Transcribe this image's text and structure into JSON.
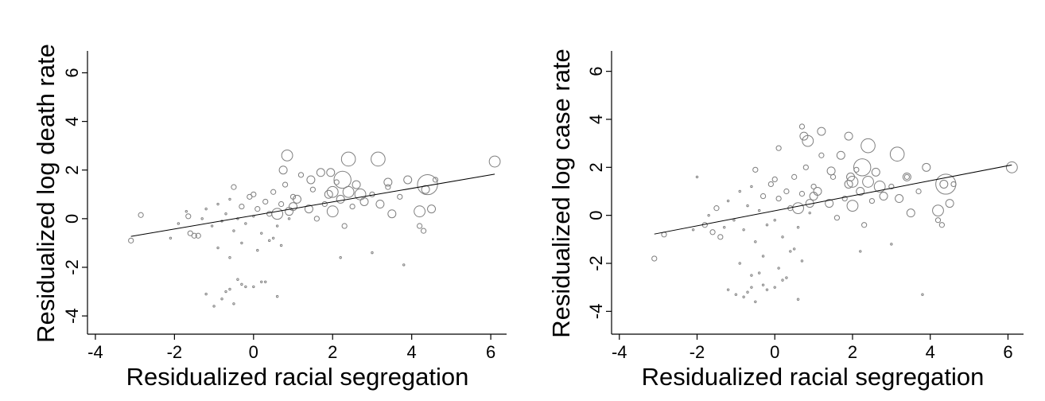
{
  "colors": {
    "marker": "#7f7f7f",
    "fit_line": "#000000",
    "axes": "#000000",
    "background": "#ffffff"
  },
  "chart_data": [
    {
      "type": "scatter",
      "title": "",
      "xlabel": "Residualized racial segregation",
      "ylabel": "Residualized log death rate",
      "xlim": [
        -4.2,
        6.4
      ],
      "ylim": [
        -4.75,
        6.9
      ],
      "x_ticks": [
        -4,
        -2,
        0,
        2,
        4,
        6
      ],
      "y_ticks": [
        -4,
        -2,
        0,
        2,
        4,
        6
      ],
      "x_tick_labels": [
        "-4",
        "-2",
        "0",
        "2",
        "4",
        "6"
      ],
      "y_tick_labels": [
        "-4",
        "-2",
        "0",
        "2",
        "4",
        "6"
      ],
      "grid": false,
      "legend": "none",
      "marker": "hollow circles weighted by county population",
      "fit_line": {
        "x": [
          -3.1,
          6.1
        ],
        "y": [
          -0.73,
          1.83
        ]
      },
      "series": [
        {
          "x": [
            -3.1,
            -2.85,
            -2.1,
            -1.9,
            -1.65,
            -1.5,
            -1.7,
            -1.3,
            -1.2,
            -1.05,
            -0.9,
            -0.8,
            -0.7,
            -0.6,
            -0.5,
            -0.4,
            -0.3,
            -0.2,
            -0.1,
            0.0,
            0.1,
            0.2,
            0.3,
            0.4,
            0.5,
            0.6,
            0.7,
            0.8,
            0.9,
            1.0,
            -0.9,
            -0.6,
            -0.3,
            0.1,
            0.4,
            0.7,
            -0.5,
            0.0,
            0.5,
            1.0,
            1.2,
            1.4,
            1.5,
            1.6,
            1.7,
            1.8,
            1.9,
            2.0,
            2.1,
            2.2,
            2.3,
            2.4,
            2.5,
            2.6,
            2.8,
            3.0,
            3.2,
            3.4,
            3.5,
            3.7,
            3.9,
            4.2,
            4.35,
            4.5,
            4.6,
            4.2,
            4.3,
            0.85,
            2.4,
            2.25,
            3.15,
            1.95,
            1.45,
            0.6,
            2.0,
            2.7,
            0.2,
            -0.2,
            -0.4,
            -0.6,
            -0.7,
            -0.8,
            -0.5,
            -0.3,
            0.0,
            0.3,
            0.6,
            -1.0,
            -1.2,
            2.2,
            3.0,
            3.8,
            6.1,
            4.4,
            3.4,
            0.9,
            -1.4,
            -1.6,
            1.1,
            0.75
          ],
          "y": [
            -0.9,
            0.15,
            -0.8,
            -0.2,
            0.1,
            -0.7,
            0.3,
            0.0,
            0.4,
            -0.3,
            0.6,
            -0.1,
            0.2,
            0.8,
            -0.5,
            0.0,
            0.5,
            -0.2,
            0.9,
            0.1,
            0.4,
            -0.6,
            0.7,
            0.2,
            1.1,
            -0.3,
            0.6,
            1.4,
            0.0,
            0.9,
            -1.2,
            -1.6,
            -1.0,
            -1.3,
            -0.9,
            -1.1,
            1.3,
            1.0,
            -0.8,
            0.5,
            1.8,
            0.4,
            1.2,
            0.0,
            1.9,
            0.6,
            1.0,
            0.3,
            1.5,
            0.8,
            -0.3,
            1.1,
            0.5,
            1.4,
            0.7,
            1.0,
            0.6,
            1.3,
            0.2,
            0.9,
            1.6,
            0.3,
            1.2,
            0.4,
            1.6,
            -0.3,
            -0.5,
            2.6,
            2.45,
            1.6,
            2.45,
            1.9,
            1.6,
            0.2,
            1.1,
            1.0,
            -2.6,
            -2.8,
            -2.5,
            -2.9,
            -3.0,
            -3.3,
            -3.5,
            -2.7,
            -2.8,
            -2.6,
            -3.2,
            -3.6,
            -3.1,
            -1.6,
            -1.4,
            -1.9,
            2.35,
            1.4,
            1.5,
            0.3,
            -0.7,
            -0.6,
            0.8,
            2.0
          ],
          "size": [
            2,
            2,
            1,
            1,
            2,
            2,
            1,
            1,
            1,
            1,
            1,
            1,
            1,
            1,
            1,
            1,
            2,
            1,
            2,
            1,
            2,
            1,
            2,
            2,
            2,
            1,
            2,
            2,
            1,
            2,
            1,
            1,
            1,
            1,
            1,
            1,
            2,
            2,
            1,
            3,
            2,
            3,
            2,
            2,
            3,
            2,
            3,
            4,
            2,
            3,
            2,
            4,
            2,
            3,
            3,
            2,
            3,
            2,
            3,
            2,
            3,
            4,
            3,
            3,
            2,
            2,
            2,
            4,
            5,
            6,
            5,
            3,
            3,
            4,
            4,
            4,
            1,
            1,
            1,
            1,
            1,
            1,
            1,
            1,
            1,
            1,
            1,
            1,
            1,
            1,
            1,
            1,
            4,
            7,
            3,
            3,
            2,
            2,
            3,
            3
          ]
        }
      ]
    },
    {
      "type": "scatter",
      "title": "",
      "xlabel": "Residualized racial segregation",
      "ylabel": "Residualized log case rate",
      "xlim": [
        -4.2,
        6.4
      ],
      "ylim": [
        -4.95,
        6.85
      ],
      "x_ticks": [
        -4,
        -2,
        0,
        2,
        4,
        6
      ],
      "y_ticks": [
        -4,
        -2,
        0,
        2,
        4,
        6
      ],
      "x_tick_labels": [
        "-4",
        "-2",
        "0",
        "2",
        "4",
        "6"
      ],
      "y_tick_labels": [
        "-4",
        "-2",
        "0",
        "2",
        "4",
        "6"
      ],
      "grid": false,
      "legend": "none",
      "marker": "hollow circles weighted by county population",
      "fit_line": {
        "x": [
          -3.1,
          6.1
        ],
        "y": [
          -0.78,
          2.1
        ]
      },
      "series": [
        {
          "x": [
            -3.1,
            -2.85,
            -2.1,
            -2.0,
            -1.8,
            -1.5,
            -1.7,
            -1.3,
            -1.2,
            -1.05,
            -0.9,
            -0.8,
            -0.7,
            -0.6,
            -0.5,
            -0.4,
            -0.3,
            -0.2,
            -0.1,
            0.0,
            0.1,
            0.2,
            0.3,
            0.4,
            0.5,
            0.6,
            0.7,
            0.8,
            0.9,
            1.0,
            -0.9,
            -0.6,
            -0.3,
            0.1,
            0.4,
            0.7,
            -0.5,
            0.0,
            0.5,
            1.0,
            1.2,
            1.4,
            1.5,
            1.6,
            1.7,
            1.8,
            1.9,
            2.0,
            2.1,
            2.2,
            2.3,
            2.4,
            2.5,
            2.6,
            2.8,
            3.0,
            3.2,
            3.4,
            3.5,
            3.7,
            3.9,
            4.2,
            4.35,
            4.5,
            4.6,
            4.2,
            4.3,
            0.85,
            2.4,
            2.25,
            3.15,
            1.95,
            1.45,
            0.6,
            2.0,
            2.7,
            0.2,
            -0.2,
            -0.4,
            -0.6,
            -0.7,
            -0.8,
            -0.5,
            -0.3,
            0.0,
            0.3,
            0.6,
            -1.0,
            -1.2,
            2.2,
            3.0,
            3.8,
            6.1,
            4.4,
            3.4,
            0.9,
            -1.4,
            -1.6,
            1.1,
            0.75,
            1.2,
            0.7,
            0.1,
            1.9
          ],
          "y": [
            -1.8,
            -0.8,
            -0.6,
            1.6,
            -0.4,
            0.3,
            0.0,
            -0.5,
            0.6,
            -0.2,
            1.0,
            -0.6,
            0.4,
            1.2,
            -1.1,
            0.2,
            0.8,
            -0.4,
            1.3,
            -0.2,
            0.7,
            -0.9,
            1.0,
            0.3,
            1.6,
            -0.5,
            0.9,
            2.0,
            0.1,
            1.2,
            -2.0,
            -2.5,
            -1.7,
            -2.2,
            -1.5,
            -1.9,
            1.9,
            1.5,
            -1.4,
            0.8,
            2.5,
            0.5,
            1.6,
            -0.1,
            2.5,
            0.7,
            1.3,
            0.4,
            1.9,
            1.0,
            -0.4,
            1.4,
            0.6,
            1.8,
            0.8,
            1.2,
            0.7,
            1.6,
            0.1,
            1.0,
            2.0,
            0.2,
            1.3,
            0.5,
            1.3,
            -0.2,
            -0.4,
            3.1,
            2.9,
            2.0,
            2.55,
            1.6,
            1.85,
            0.3,
            1.4,
            1.2,
            -2.7,
            -3.1,
            -2.4,
            -3.0,
            -3.2,
            -3.4,
            -3.6,
            -2.9,
            -3.0,
            -2.6,
            -3.5,
            -3.3,
            -3.1,
            -1.5,
            -1.2,
            -3.3,
            2.0,
            1.3,
            1.6,
            0.5,
            -0.9,
            -0.7,
            1.0,
            3.3,
            3.5,
            3.7,
            2.8,
            3.3
          ],
          "size": [
            2,
            2,
            1,
            1,
            2,
            2,
            1,
            1,
            1,
            1,
            1,
            1,
            1,
            1,
            1,
            1,
            2,
            1,
            2,
            1,
            2,
            1,
            2,
            2,
            2,
            1,
            2,
            2,
            1,
            2,
            1,
            1,
            1,
            1,
            1,
            1,
            2,
            2,
            1,
            3,
            2,
            3,
            2,
            2,
            3,
            2,
            3,
            4,
            2,
            3,
            2,
            4,
            2,
            3,
            3,
            2,
            3,
            2,
            3,
            2,
            3,
            4,
            3,
            3,
            2,
            2,
            2,
            4,
            5,
            6,
            5,
            3,
            3,
            4,
            4,
            4,
            1,
            1,
            1,
            1,
            1,
            1,
            1,
            1,
            1,
            1,
            1,
            1,
            1,
            1,
            1,
            1,
            4,
            7,
            3,
            3,
            2,
            2,
            3,
            3,
            3,
            2,
            2,
            3
          ]
        }
      ]
    }
  ]
}
